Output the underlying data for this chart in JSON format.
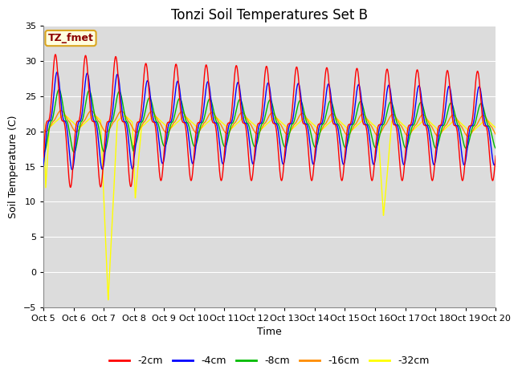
{
  "title": "Tonzi Soil Temperatures Set B",
  "xlabel": "Time",
  "ylabel": "Soil Temperature (C)",
  "xlim": [
    0,
    15
  ],
  "ylim": [
    -5,
    35
  ],
  "yticks": [
    -5,
    0,
    5,
    10,
    15,
    20,
    25,
    30,
    35
  ],
  "xtick_labels": [
    "Oct 5",
    "Oct 6",
    "Oct 7",
    "Oct 8",
    "Oct 9",
    "Oct 10",
    "Oct 11",
    "Oct 12",
    "Oct 13",
    "Oct 14",
    "Oct 15",
    "Oct 16",
    "Oct 17",
    "Oct 18",
    "Oct 19",
    "Oct 20"
  ],
  "series_colors": [
    "#FF0000",
    "#0000FF",
    "#00BB00",
    "#FF8C00",
    "#FFFF00"
  ],
  "series_labels": [
    "-2cm",
    "-4cm",
    "-8cm",
    "-16cm",
    "-32cm"
  ],
  "legend_label": "TZ_fmet",
  "bg_color": "#DCDCDC",
  "title_fontsize": 12,
  "axis_fontsize": 9,
  "tick_fontsize": 8
}
